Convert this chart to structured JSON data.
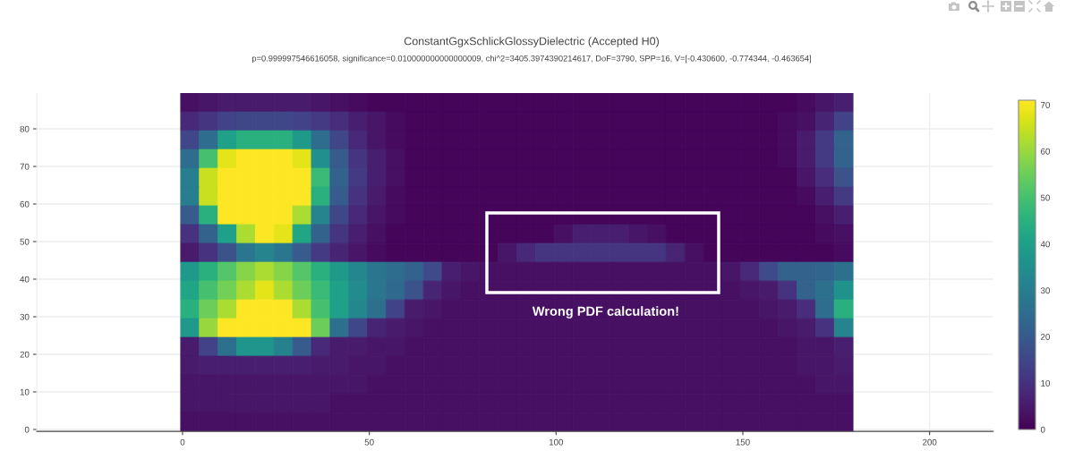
{
  "chart_data": {
    "type": "heatmap",
    "title": "ConstantGgxSchlickGlossyDielectric (Accepted H0)",
    "subtitle": "p=0.999997546616058, significance=0.010000000000000009, chi^2=3405.3974390214617, DoF=3790, SPP=16, V=[-0.430600, -0.774344, -0.463654]",
    "x": [
      2,
      7,
      12,
      17,
      22,
      27,
      32,
      37,
      42,
      47,
      52,
      57,
      62,
      67,
      72,
      77,
      82,
      87,
      92,
      97,
      102,
      107,
      112,
      117,
      122,
      127,
      132,
      137,
      142,
      147,
      152,
      157,
      162,
      167,
      172,
      177
    ],
    "cells": [
      [
        3,
        4,
        5,
        5,
        5,
        5,
        5,
        4,
        3,
        2,
        1,
        1,
        1,
        1,
        1,
        1,
        1,
        1,
        1,
        1,
        1,
        1,
        1,
        1,
        1,
        1,
        1,
        1,
        1,
        1,
        1,
        1,
        1,
        2,
        4,
        6
      ],
      [
        8,
        11,
        14,
        15,
        15,
        15,
        14,
        12,
        9,
        6,
        4,
        2,
        1,
        1,
        1,
        1,
        1,
        1,
        1,
        1,
        1,
        1,
        1,
        1,
        1,
        1,
        1,
        1,
        1,
        1,
        1,
        1,
        2,
        3,
        7,
        14
      ],
      [
        15,
        25,
        40,
        45,
        45,
        45,
        38,
        25,
        15,
        8,
        4,
        2,
        1,
        1,
        1,
        1,
        1,
        1,
        1,
        1,
        1,
        1,
        1,
        1,
        1,
        1,
        1,
        1,
        1,
        1,
        1,
        1,
        2,
        5,
        12,
        22
      ],
      [
        25,
        50,
        68,
        71,
        71,
        71,
        68,
        35,
        20,
        11,
        6,
        3,
        1,
        1,
        1,
        1,
        1,
        1,
        1,
        1,
        1,
        1,
        1,
        1,
        1,
        1,
        1,
        1,
        1,
        1,
        1,
        1,
        2,
        5,
        12,
        22
      ],
      [
        30,
        65,
        71,
        71,
        71,
        71,
        71,
        48,
        22,
        12,
        6,
        3,
        1,
        1,
        1,
        1,
        1,
        1,
        1,
        1,
        1,
        1,
        1,
        1,
        1,
        1,
        1,
        1,
        1,
        1,
        1,
        1,
        1,
        4,
        9,
        18
      ],
      [
        30,
        65,
        71,
        71,
        71,
        71,
        71,
        45,
        20,
        10,
        5,
        2,
        1,
        1,
        1,
        1,
        1,
        1,
        1,
        1,
        1,
        1,
        1,
        1,
        1,
        1,
        1,
        1,
        1,
        1,
        1,
        1,
        1,
        2,
        6,
        12
      ],
      [
        20,
        45,
        71,
        71,
        71,
        71,
        62,
        32,
        15,
        8,
        4,
        2,
        1,
        1,
        1,
        1,
        1,
        1,
        1,
        1,
        1,
        1,
        1,
        1,
        1,
        1,
        1,
        1,
        1,
        1,
        1,
        1,
        1,
        1,
        3,
        6
      ],
      [
        10,
        22,
        40,
        62,
        71,
        68,
        42,
        22,
        11,
        6,
        3,
        1,
        1,
        1,
        1,
        1,
        1,
        1,
        1,
        1,
        3,
        6,
        6,
        6,
        4,
        3,
        1,
        1,
        1,
        1,
        1,
        1,
        1,
        1,
        2,
        3
      ],
      [
        5,
        10,
        18,
        28,
        32,
        28,
        20,
        12,
        7,
        4,
        2,
        1,
        1,
        1,
        1,
        1,
        1,
        4,
        8,
        11,
        11,
        11,
        11,
        11,
        11,
        11,
        7,
        3,
        1,
        1,
        1,
        1,
        1,
        1,
        1,
        2
      ],
      [
        38,
        45,
        52,
        58,
        62,
        58,
        52,
        45,
        38,
        33,
        28,
        25,
        22,
        16,
        6,
        4,
        3,
        3,
        3,
        3,
        3,
        3,
        3,
        3,
        3,
        3,
        3,
        3,
        3,
        4,
        8,
        16,
        22,
        22,
        23,
        26
      ],
      [
        42,
        50,
        56,
        62,
        68,
        62,
        55,
        48,
        40,
        34,
        28,
        24,
        18,
        7,
        4,
        3,
        3,
        3,
        3,
        3,
        3,
        3,
        3,
        3,
        3,
        3,
        3,
        3,
        3,
        3,
        4,
        5,
        10,
        22,
        26,
        36
      ],
      [
        45,
        55,
        62,
        71,
        71,
        71,
        62,
        50,
        40,
        33,
        26,
        14,
        5,
        4,
        3,
        3,
        3,
        3,
        3,
        3,
        3,
        3,
        3,
        3,
        3,
        3,
        3,
        3,
        3,
        3,
        3,
        4,
        5,
        9,
        25,
        45
      ],
      [
        38,
        60,
        71,
        71,
        71,
        71,
        71,
        55,
        26,
        15,
        7,
        5,
        4,
        3,
        3,
        3,
        3,
        3,
        3,
        3,
        3,
        3,
        3,
        3,
        3,
        3,
        3,
        3,
        3,
        3,
        3,
        3,
        4,
        5,
        10,
        32
      ],
      [
        5,
        14,
        26,
        37,
        37,
        31,
        20,
        8,
        5,
        5,
        4,
        4,
        3,
        3,
        3,
        3,
        3,
        3,
        3,
        3,
        3,
        3,
        3,
        3,
        3,
        3,
        3,
        3,
        3,
        3,
        3,
        3,
        3,
        4,
        4,
        6
      ],
      [
        5,
        6,
        6,
        6,
        6,
        6,
        6,
        5,
        5,
        4,
        4,
        3,
        3,
        3,
        3,
        3,
        3,
        3,
        3,
        3,
        3,
        3,
        3,
        3,
        3,
        3,
        3,
        3,
        3,
        3,
        3,
        3,
        3,
        4,
        4,
        5
      ],
      [
        4,
        4,
        4,
        4,
        4,
        4,
        4,
        4,
        4,
        4,
        3,
        3,
        3,
        3,
        3,
        3,
        3,
        3,
        3,
        3,
        3,
        3,
        3,
        3,
        3,
        3,
        3,
        3,
        3,
        3,
        3,
        3,
        3,
        3,
        4,
        4
      ],
      [
        4,
        4,
        4,
        4,
        4,
        4,
        4,
        4,
        3,
        3,
        3,
        3,
        3,
        3,
        3,
        3,
        3,
        3,
        3,
        3,
        3,
        3,
        3,
        3,
        3,
        3,
        3,
        3,
        3,
        3,
        3,
        3,
        3,
        3,
        3,
        3
      ],
      [
        3,
        3,
        3,
        3,
        3,
        3,
        3,
        3,
        3,
        3,
        3,
        3,
        3,
        3,
        3,
        3,
        3,
        3,
        3,
        3,
        3,
        3,
        3,
        3,
        3,
        3,
        3,
        3,
        3,
        3,
        3,
        3,
        3,
        3,
        3,
        3
      ]
    ],
    "clim": [
      0,
      71
    ],
    "cticks": [
      0,
      10,
      20,
      30,
      40,
      50,
      60,
      70
    ],
    "xlim": [
      -39,
      217
    ],
    "ylim": [
      -0.5,
      89.5
    ],
    "xticks": [
      0,
      50,
      100,
      150,
      200
    ],
    "yticks": [
      0,
      10,
      20,
      30,
      40,
      50,
      60,
      70,
      80
    ],
    "grid": true,
    "annotations": [
      "Wrong PDF calculation!"
    ]
  }
}
